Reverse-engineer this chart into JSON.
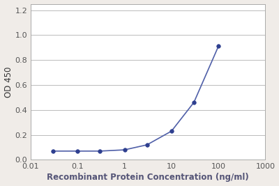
{
  "x_values": [
    0.03,
    0.1,
    0.3,
    1.0,
    3.0,
    10.0,
    30.0,
    100.0
  ],
  "y_values": [
    0.07,
    0.07,
    0.07,
    0.08,
    0.12,
    0.23,
    0.46,
    0.91
  ],
  "x_label": "Recombinant Protein Concentration (ng/ml)",
  "y_label": "OD 450",
  "xlim": [
    0.01,
    1000
  ],
  "ylim": [
    0.0,
    1.25
  ],
  "yticks": [
    0.0,
    0.2,
    0.4,
    0.6,
    0.8,
    1.0,
    1.2
  ],
  "xticks": [
    0.01,
    0.1,
    1,
    10,
    100,
    1000
  ],
  "xtick_labels": [
    "0.01",
    "0.1",
    "1",
    "10",
    "100",
    "1000"
  ],
  "line_color": "#4f5fa8",
  "marker_color": "#2e3f8f",
  "background_color": "#f0ece8",
  "plot_bg_color": "#ffffff",
  "xlabel_color": "#555577",
  "ylabel_color": "#333333",
  "tick_color": "#555555",
  "grid_color": "#bbbbbb",
  "spine_color": "#aaaaaa",
  "label_fontsize": 8.5,
  "tick_fontsize": 8,
  "line_width": 1.2,
  "marker_size": 4
}
